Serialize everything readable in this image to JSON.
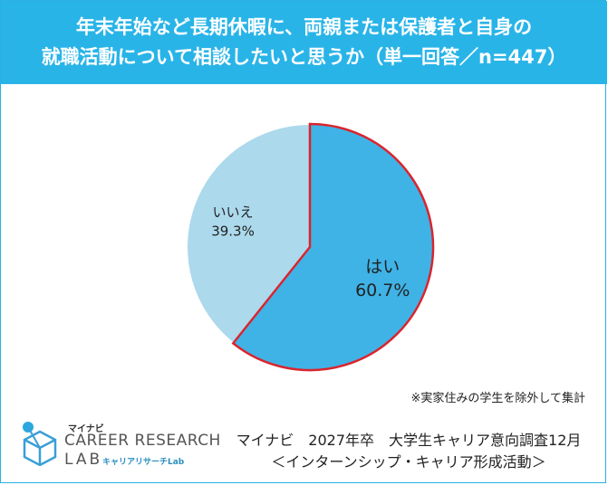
{
  "title_line1": "年末年始など長期休暇に、両親または保護者と自身の",
  "title_line2": "就職活動について相談したいと思うか（単一回答／n=447）",
  "chart_data": {
    "type": "pie",
    "title": "年末年始など長期休暇に、両親または保護者と自身の就職活動について相談したいと思うか（単一回答／n=447）",
    "n": 447,
    "categories": [
      "はい",
      "いいえ"
    ],
    "values": [
      60.7,
      39.3
    ],
    "value_labels": [
      "60.7%",
      "39.3%"
    ],
    "colors": [
      "#3fb3e6",
      "#acd9ec"
    ],
    "highlight_color": "#d9242e",
    "start_angle_deg": 0,
    "direction": "clockwise"
  },
  "note": "※実家住みの学生を除外して集計",
  "logo": {
    "small": "マイナビ",
    "main": "CAREER RESEARCH",
    "lab": "LAB",
    "sub": "キャリアリサーチLab"
  },
  "source_line1": "マイナビ　2027年卒　大学生キャリア意向調査12月",
  "source_line2": "＜インターンシップ・キャリア形成活動＞"
}
